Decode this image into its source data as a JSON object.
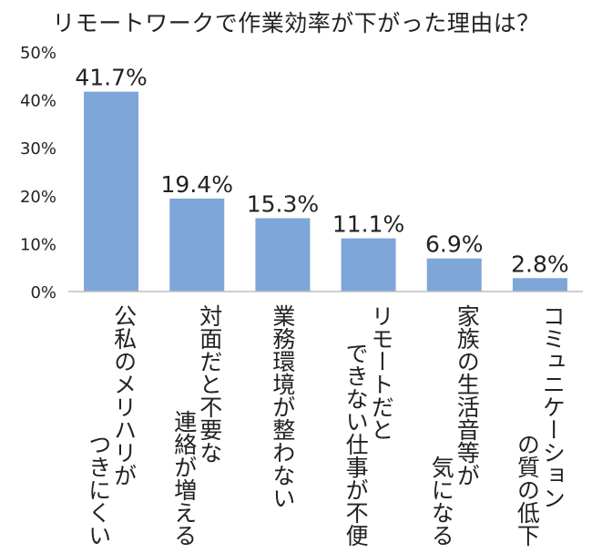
{
  "chart_data": {
    "type": "bar",
    "title": "リモートワークで作業効率が下がった理由は？",
    "categories": [
      [
        "公私のメリハリが",
        "つきにくい"
      ],
      [
        "対面だと不要な",
        "連絡が増える"
      ],
      [
        "業務環境が整わない"
      ],
      [
        "リモートだと",
        "できない仕事が不便"
      ],
      [
        "家族の生活音等が",
        "気になる"
      ],
      [
        "コミュニケーション",
        "の質の低下"
      ]
    ],
    "values": [
      41.7,
      19.4,
      15.3,
      11.1,
      6.9,
      2.8
    ],
    "value_labels": [
      "41.7%",
      "19.4%",
      "15.3%",
      "11.1%",
      "6.9%",
      "2.8%"
    ],
    "yticks": [
      "0%",
      "10%",
      "20%",
      "30%",
      "40%",
      "50%"
    ],
    "ylim": [
      0,
      50
    ],
    "xlabel": "",
    "ylabel": "",
    "grid": false,
    "bar_color": "#7EA6D8"
  }
}
